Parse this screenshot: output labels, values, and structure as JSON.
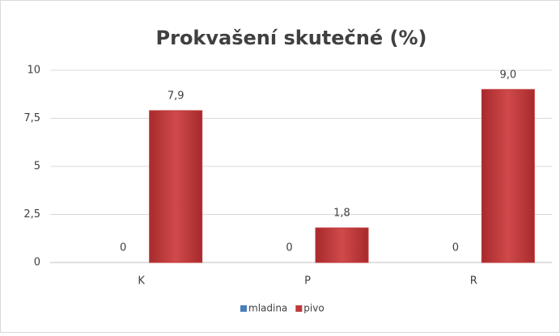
{
  "chart_data": {
    "type": "bar",
    "title": "Prokvašení skutečné (%)",
    "categories": [
      "K",
      "P",
      "R"
    ],
    "series": [
      {
        "name": "mladina",
        "color": "#4a7ebb",
        "values": [
          0,
          0,
          0
        ]
      },
      {
        "name": "pivo",
        "color": "#c0393b",
        "values": [
          7.9,
          1.8,
          9.0
        ],
        "value_labels": [
          "7,9",
          "1,8",
          "9,0"
        ]
      }
    ],
    "ylim": [
      0,
      10
    ],
    "yticks": [
      0,
      {
        "value": 2.5,
        "label": "2,5"
      },
      5,
      {
        "value": 7.5,
        "label": "7,5"
      },
      10
    ],
    "grid": true,
    "legend": "bottom"
  }
}
